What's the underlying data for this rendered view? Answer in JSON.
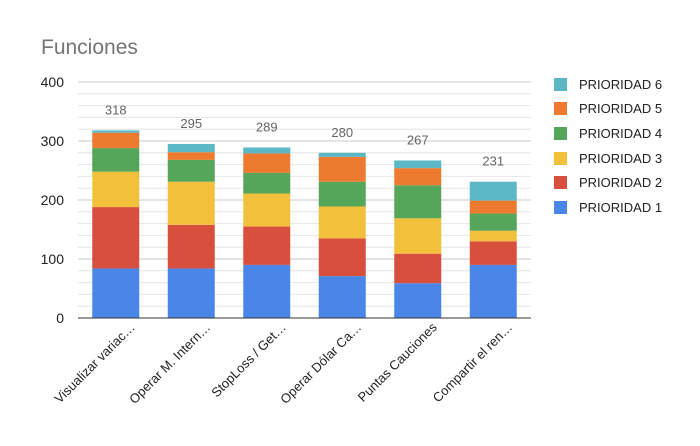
{
  "chart_data": {
    "type": "bar",
    "stacked": true,
    "title": "Funciones",
    "xlabel": "",
    "ylabel": "",
    "ylim": [
      0,
      400
    ],
    "yticks": [
      0,
      100,
      200,
      300,
      400
    ],
    "grid": true,
    "legend_position": "right",
    "categories": [
      "Visualizar variac…",
      "Operar M. Intern…",
      "StopLoss / Get…",
      "Operar Dólar Ca…",
      "Puntas Cauciones",
      "Compartir el ren…"
    ],
    "totals": [
      "318",
      "295",
      "289",
      "280",
      "267",
      "231"
    ],
    "series": [
      {
        "name": "PRIORIDAD 1",
        "color": "#4a86e8",
        "values": [
          84,
          84,
          90,
          71,
          59,
          90
        ]
      },
      {
        "name": "PRIORIDAD 2",
        "color": "#d94f3d",
        "values": [
          104,
          74,
          65,
          64,
          50,
          40
        ]
      },
      {
        "name": "PRIORIDAD 3",
        "color": "#f2c03a",
        "values": [
          60,
          73,
          56,
          54,
          60,
          18
        ]
      },
      {
        "name": "PRIORIDAD 4",
        "color": "#55a65a",
        "values": [
          40,
          37,
          35,
          42,
          56,
          29
        ]
      },
      {
        "name": "PRIORIDAD 5",
        "color": "#ee7a2f",
        "values": [
          26,
          13,
          33,
          42,
          29,
          22
        ]
      },
      {
        "name": "PRIORIDAD 6",
        "color": "#5cb8c4",
        "values": [
          4,
          14,
          10,
          7,
          13,
          32
        ]
      }
    ]
  }
}
